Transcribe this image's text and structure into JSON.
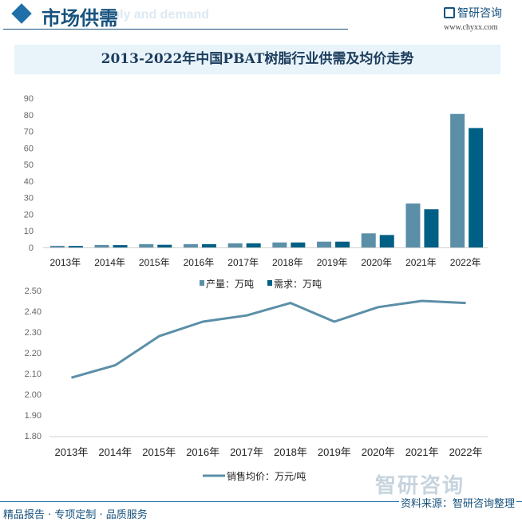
{
  "header": {
    "title": "市场供需",
    "subtitle": "Supply and demand",
    "logo_text": "智研咨询",
    "url": "www.chyxx.com"
  },
  "colors": {
    "production": "#5b8fa8",
    "demand": "#005f84",
    "price_line": "#5b8fa8",
    "brand": "#17527e"
  },
  "chart_title": "2013-2022年中国PBAT树脂行业供需及均价走势",
  "chart_data": [
    {
      "type": "bar",
      "categories": [
        "2013年",
        "2014年",
        "2015年",
        "2016年",
        "2017年",
        "2018年",
        "2019年",
        "2020年",
        "2021年",
        "2022年"
      ],
      "series": [
        {
          "name": "产量：万吨",
          "values": [
            1.0,
            1.5,
            2.0,
            2.0,
            2.5,
            3.0,
            3.5,
            8.5,
            26.5,
            80.5
          ]
        },
        {
          "name": "需求：万吨",
          "values": [
            0.9,
            1.4,
            1.6,
            2.0,
            2.5,
            3.0,
            3.5,
            7.5,
            23.0,
            72.0
          ]
        }
      ],
      "ylim": [
        0,
        90
      ],
      "yticks": [
        "0",
        "10",
        "20",
        "30",
        "40",
        "50",
        "60",
        "70",
        "80",
        "90"
      ],
      "grid": false,
      "legend": "bottom"
    },
    {
      "type": "line",
      "categories": [
        "2013年",
        "2014年",
        "2015年",
        "2016年",
        "2017年",
        "2018年",
        "2019年",
        "2020年",
        "2021年",
        "2022年"
      ],
      "series": [
        {
          "name": "销售均价：万元/吨",
          "values": [
            2.08,
            2.14,
            2.28,
            2.35,
            2.38,
            2.44,
            2.35,
            2.42,
            2.45,
            2.44
          ]
        }
      ],
      "ylim": [
        1.8,
        2.5
      ],
      "yticks": [
        "1.80",
        "1.90",
        "2.00",
        "2.10",
        "2.20",
        "2.30",
        "2.40",
        "2.50"
      ],
      "grid": false,
      "legend": "bottom"
    }
  ],
  "watermark": "智研咨询",
  "footer": {
    "left": "精品报告 · 专项定制 · 品质服务",
    "right": "资料来源：智研咨询整理"
  }
}
